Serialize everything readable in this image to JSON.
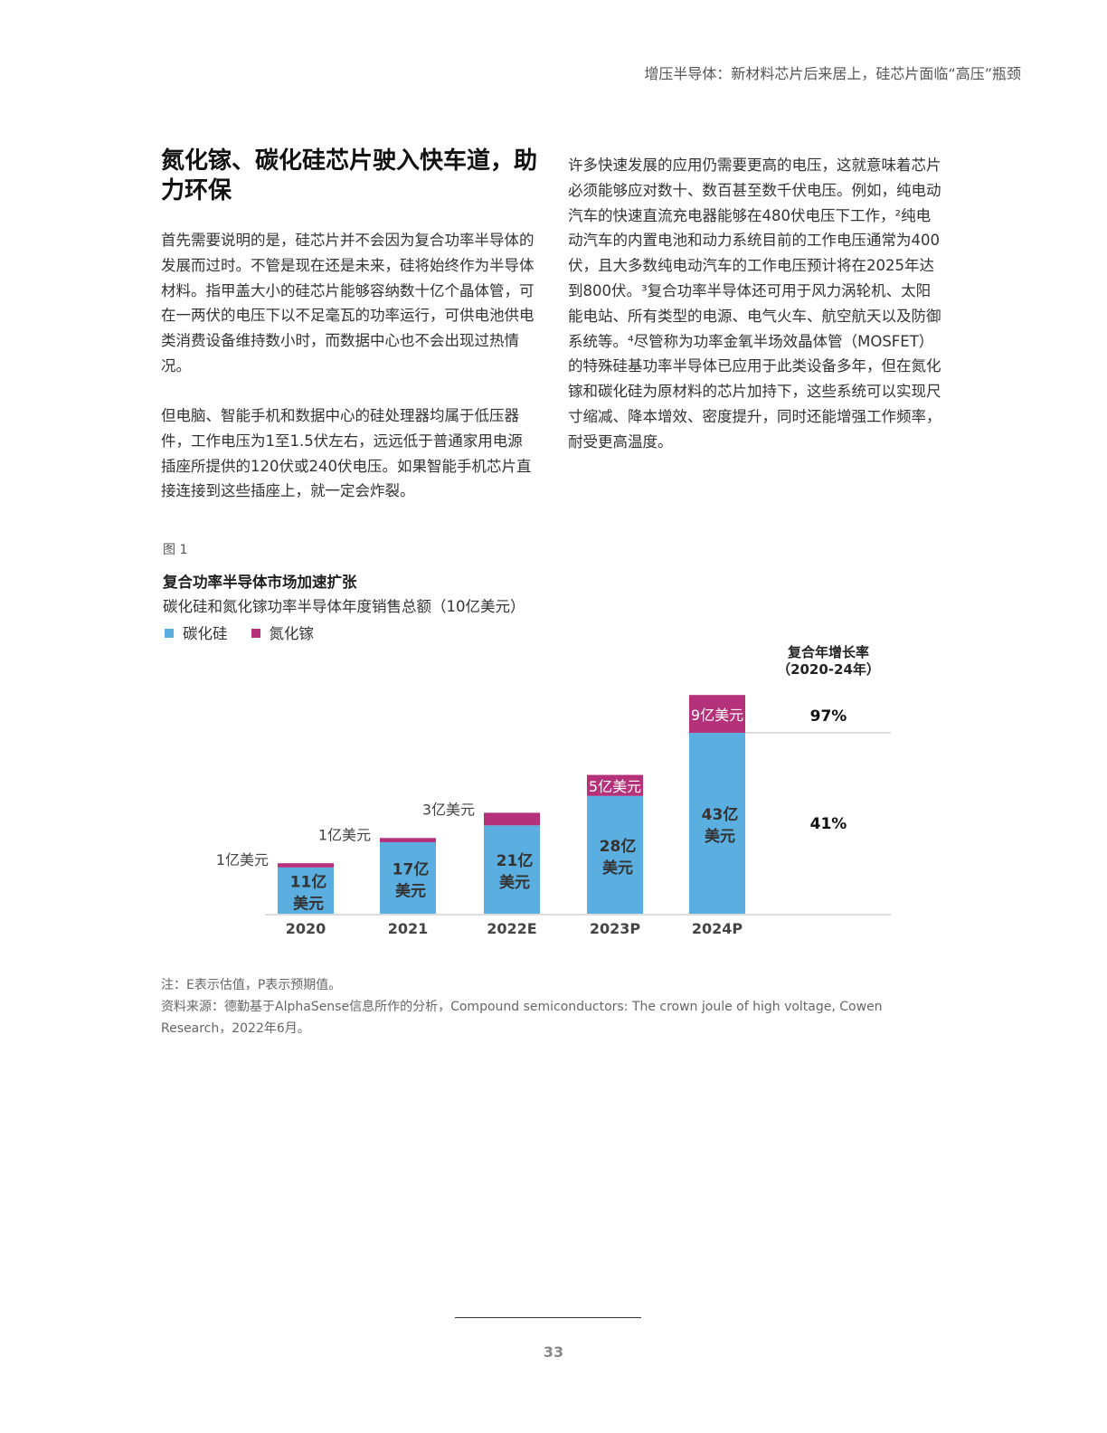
{
  "header": "增压半导体：新材料芯片后来居上，硅芯片面临“高压”瓶颈",
  "title": "氮化镓、碳化硅芯片驶入快车道，助力环保",
  "paragraphs": [
    "首先需要说明的是，硅芯片并不会因为复合功率半导体的发展而过时。不管是现在还是未来，硅将始终作为半导体材料。指甲盖大小的硅芯片能够容纳数十亿个晶体管，可在一两伏的电压下以不足毫瓦的功率运行，可供电池供电类消费设备维持数小时，而数据中心也不会出现过热情况。",
    "但电脑、智能手机和数据中心的硅处理器均属于低压器件，工作电压为1至1.5伏左右，远远低于普通家用电源插座所提供的120伏或240伏电压。如果智能手机芯片直接连接到这些插座上，就一定会炸裂。",
    "许多快速发展的应用仍需要更高的电压，这就意味着芯片必须能够应对数十、数百甚至数千伏电压。例如，纯电动汽车的快速直流充电器能够在480伏电压下工作，²纯电动汽车的内置电池和动力系统目前的工作电压通常为400伏，且大多数纯电动汽车的工作电压预计将在2025年达到800伏。³复合功率半导体还可用于风力涡轮机、太阳能电站、所有类型的电源、电气火车、航空航天以及防御系统等。⁴尽管称为功率金氧半场效晶体管（MOSFET）的特殊硅基功率半导体已应用于此类设备多年，但在氮化镓和碳化硅为原材料的芯片加持下，这些系统可以实现尺寸缩减、降本增效、密度提升，同时还能增强工作频率，耐受更高温度。"
  ],
  "figure_label": "图 1",
  "chart_data": {
    "type": "bar",
    "stacked": true,
    "title": "复合功率半导体市场加速扩张",
    "subtitle": "碳化硅和氮化镓功率半导体年度销售总额（10亿美元）",
    "categories": [
      "2020",
      "2021",
      "2022E",
      "2023P",
      "2024P"
    ],
    "series": [
      {
        "name": "碳化硅",
        "color": "#5aafe0",
        "values": [
          1.1,
          1.7,
          2.1,
          2.8,
          4.3
        ],
        "labels": [
          "11亿",
          "17亿",
          "21亿",
          "28亿",
          "43亿"
        ],
        "label_unit": "美元"
      },
      {
        "name": "氮化镓",
        "color": "#b5317a",
        "values": [
          0.1,
          0.1,
          0.3,
          0.5,
          0.9
        ],
        "labels": [
          "1亿美元",
          "1亿美元",
          "3亿美元",
          "5亿美元",
          "9亿美元"
        ]
      }
    ],
    "cagr_title": "复合年增长率",
    "cagr_period": "（2020-24年）",
    "cagr": [
      {
        "series": "氮化镓",
        "value": "97%"
      },
      {
        "series": "碳化硅",
        "value": "41%"
      }
    ]
  },
  "notes": [
    "注：E表示估值，P表示预期值。",
    "资料来源：德勤基于AlphaSense信息所作的分析，Compound semiconductors: The crown joule of high voltage, Cowen Research，2022年6月。"
  ],
  "page_number": "33"
}
